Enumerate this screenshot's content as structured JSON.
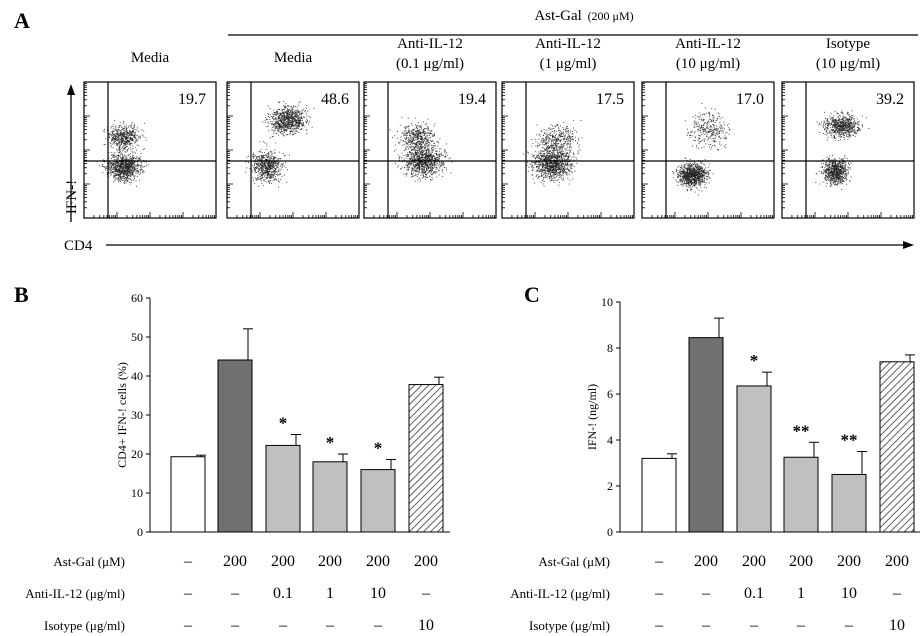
{
  "panel_letters": [
    "A",
    "B",
    "C"
  ],
  "flow": {
    "header_label": "Ast-Gal",
    "header_conc": "(200 μM)",
    "x_label": "CD4",
    "y_label": "IFN-!",
    "plots": [
      {
        "line1": "Media",
        "line2": "",
        "value": "19.7"
      },
      {
        "line1": "Media",
        "line2": "",
        "value": "48.6"
      },
      {
        "line1": "Anti-IL-12",
        "line2": "(0.1 μg/ml)",
        "value": "19.4"
      },
      {
        "line1": "Anti-IL-12",
        "line2": "(1 μg/ml)",
        "value": "17.5"
      },
      {
        "line1": "Anti-IL-12",
        "line2": "(10 μg/ml)",
        "value": "17.0"
      },
      {
        "line1": "Isotype",
        "line2": "(10 μg/ml)",
        "value": "39.2"
      }
    ]
  },
  "chart_data": [
    {
      "type": "bar",
      "panel": "B",
      "ylabel": "CD4+ IFN-! cells (%)",
      "ylim": [
        0,
        60
      ],
      "yticks": [
        0,
        10,
        20,
        30,
        40,
        50,
        60
      ],
      "values": [
        19.3,
        44.1,
        22.2,
        18.0,
        16.0,
        37.8
      ],
      "errors": [
        0.4,
        8.0,
        2.8,
        2.0,
        2.6,
        1.9
      ],
      "significance": [
        "",
        "",
        "*",
        "*",
        "*",
        ""
      ],
      "fills": [
        "white",
        "dark",
        "light",
        "light",
        "light",
        "hatch"
      ]
    },
    {
      "type": "bar",
      "panel": "C",
      "ylabel": "IFN-! (ng/ml)",
      "ylim": [
        0,
        10
      ],
      "yticks": [
        0,
        2,
        4,
        6,
        8,
        10
      ],
      "values": [
        3.2,
        8.45,
        6.35,
        3.25,
        2.5,
        7.4
      ],
      "errors": [
        0.2,
        0.85,
        0.6,
        0.65,
        1.0,
        0.3
      ],
      "significance": [
        "",
        "",
        "*",
        "**",
        "**",
        ""
      ],
      "fills": [
        "white",
        "dark",
        "light",
        "light",
        "light",
        "hatch"
      ]
    }
  ],
  "conditions": {
    "rows": [
      {
        "label": "Ast-Gal (μM)",
        "values": [
          "–",
          "200",
          "200",
          "200",
          "200",
          "200"
        ]
      },
      {
        "label": "Anti-IL-12 (μg/ml)",
        "values": [
          "–",
          "–",
          "0.1",
          "1",
          "10",
          "–"
        ]
      },
      {
        "label": "Isotype (μg/ml)",
        "values": [
          "–",
          "–",
          "–",
          "–",
          "–",
          "10"
        ]
      }
    ]
  },
  "colors": {
    "dark": "#707070",
    "light": "#c0c0c0",
    "white": "#ffffff",
    "hatch": "#a8a8a8"
  }
}
